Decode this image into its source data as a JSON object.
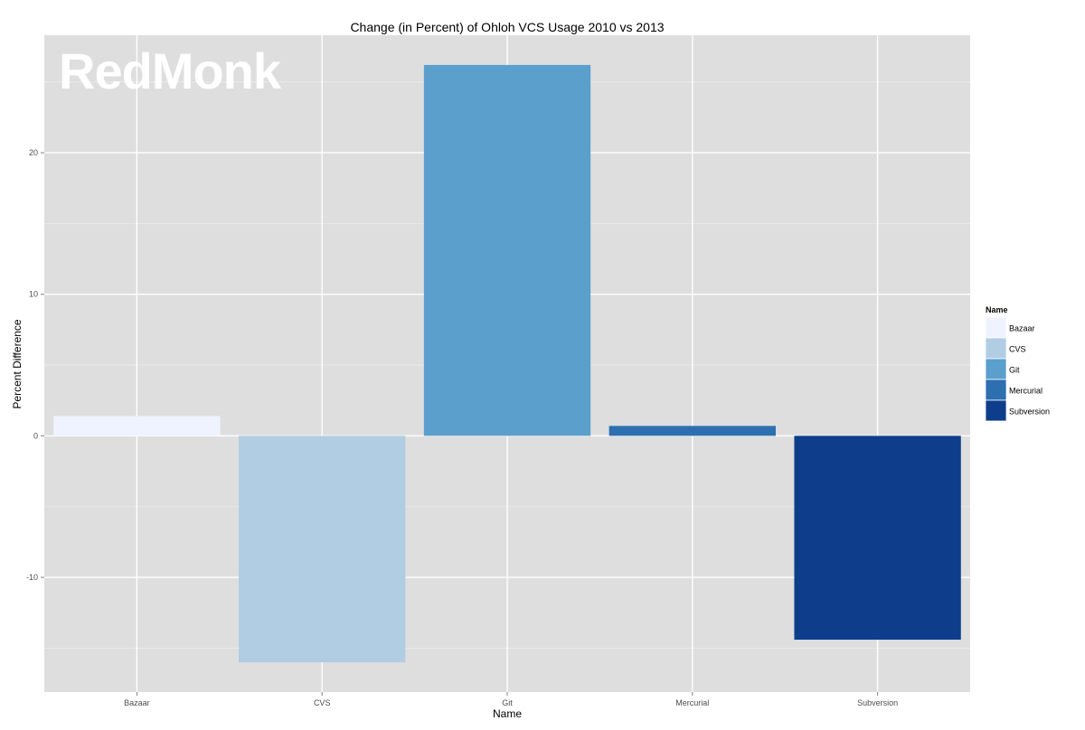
{
  "chart_data": {
    "type": "bar",
    "title": "Change (in Percent) of Ohloh VCS Usage 2010 vs 2013",
    "xlabel": "Name",
    "ylabel": "Percent Difference",
    "categories": [
      "Bazaar",
      "CVS",
      "Git",
      "Mercurial",
      "Subversion"
    ],
    "values": [
      1.4,
      -16.0,
      26.2,
      0.7,
      -14.4
    ],
    "colors": [
      "#eff3ff",
      "#b0cde3",
      "#5b9fcc",
      "#2d6fb0",
      "#0e3e8b"
    ],
    "ylim": [
      -18.1,
      28.3
    ],
    "yticks": [
      -10,
      0,
      10,
      20
    ],
    "grid": true,
    "panel_background": "#dedede",
    "legend": {
      "title": "Name",
      "position": "right",
      "items": [
        "Bazaar",
        "CVS",
        "Git",
        "Mercurial",
        "Subversion"
      ]
    },
    "watermark": "RedMonk"
  }
}
